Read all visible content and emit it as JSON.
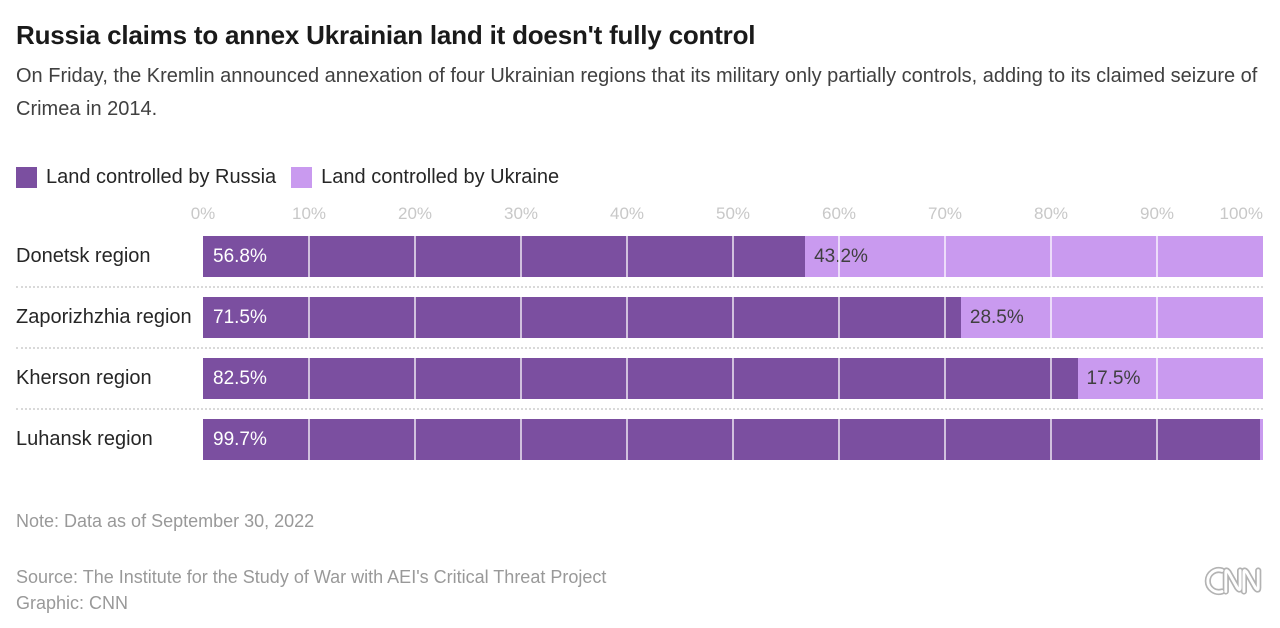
{
  "header": {
    "title": "Russia claims to annex Ukrainian land it doesn't fully control",
    "subtitle": "On Friday, the Kremlin announced annexation of four Ukrainian regions that its military only partially controls, adding to its claimed seizure of Crimea in 2014."
  },
  "colors": {
    "russia": "#7b4fa0",
    "ukraine": "#c99aef"
  },
  "legend": [
    {
      "label": "Land controlled by Russia",
      "color": "#7b4fa0"
    },
    {
      "label": "Land controlled by Ukraine",
      "color": "#c99aef"
    }
  ],
  "chart_data": {
    "type": "bar",
    "stacked": true,
    "orientation": "horizontal",
    "categories": [
      "Donetsk region",
      "Zaporizhzhia region",
      "Kherson region",
      "Luhansk region"
    ],
    "series": [
      {
        "name": "Land controlled by Russia",
        "color": "#7b4fa0",
        "values": [
          56.8,
          71.5,
          82.5,
          99.7
        ],
        "labels": [
          "56.8%",
          "71.5%",
          "82.5%",
          "99.7%"
        ]
      },
      {
        "name": "Land controlled by Ukraine",
        "color": "#c99aef",
        "values": [
          43.2,
          28.5,
          17.5,
          0.3
        ],
        "labels": [
          "43.2%",
          "28.5%",
          "17.5%",
          ""
        ]
      }
    ],
    "x_ticks": [
      "0%",
      "10%",
      "20%",
      "30%",
      "40%",
      "50%",
      "60%",
      "70%",
      "80%",
      "90%",
      "100%"
    ],
    "xlim": [
      0,
      100
    ],
    "grid": "white-lines-every-10pct",
    "legend_position": "top"
  },
  "footer": {
    "note": "Note: Data as of September 30, 2022",
    "source": "Source: The Institute for the Study of War with AEI's Critical Threat Project",
    "graphic": "Graphic: CNN",
    "logo": "CNN"
  }
}
